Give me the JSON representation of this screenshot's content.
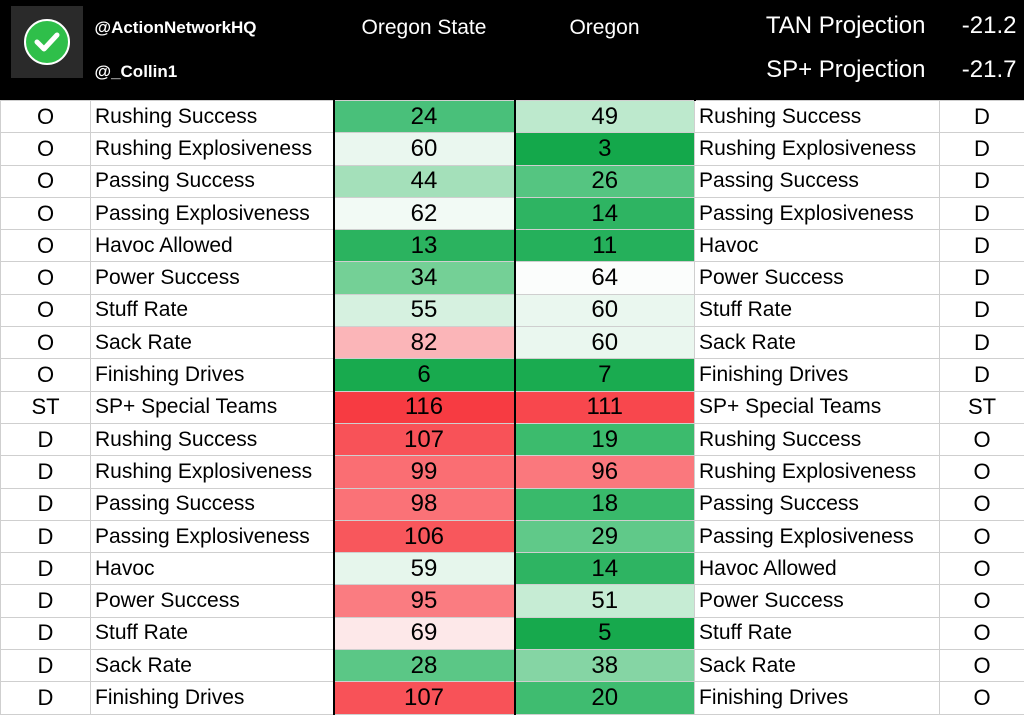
{
  "header": {
    "handle_primary": "@ActionNetworkHQ",
    "handle_secondary": "@_Collin1",
    "team_left": "Oregon State",
    "team_right": "Oregon",
    "projections": [
      {
        "label": "TAN Projection",
        "value": "-21.2"
      },
      {
        "label": "SP+ Projection",
        "value": "-21.7"
      }
    ]
  },
  "rows": [
    {
      "left_unit": "O",
      "left_label": "Rushing Success",
      "left_rank": "24",
      "left_color": "#49c07a",
      "right_rank": "49",
      "right_color": "#bde9cd",
      "right_label": "Rushing Success",
      "right_unit": "D"
    },
    {
      "left_unit": "O",
      "left_label": "Rushing Explosiveness",
      "left_rank": "60",
      "left_color": "#eaf7ef",
      "right_rank": "3",
      "right_color": "#14a84b",
      "right_label": "Rushing Explosiveness",
      "right_unit": "D"
    },
    {
      "left_unit": "O",
      "left_label": "Passing Success",
      "left_rank": "44",
      "left_color": "#a4e0ba",
      "right_rank": "26",
      "right_color": "#55c581",
      "right_label": "Passing Success",
      "right_unit": "D"
    },
    {
      "left_unit": "O",
      "left_label": "Passing Explosiveness",
      "left_rank": "62",
      "left_color": "#f2faf5",
      "right_rank": "14",
      "right_color": "#2eb462",
      "right_label": "Passing Explosiveness",
      "right_unit": "D"
    },
    {
      "left_unit": "O",
      "left_label": "Havoc Allowed",
      "left_rank": "13",
      "left_color": "#2bb35f",
      "right_rank": "11",
      "right_color": "#25b05b",
      "right_label": "Havoc",
      "right_unit": "D"
    },
    {
      "left_unit": "O",
      "left_label": "Power Success",
      "left_rank": "34",
      "left_color": "#74d096",
      "right_rank": "64",
      "right_color": "#fbfdfc",
      "right_label": "Power Success",
      "right_unit": "D"
    },
    {
      "left_unit": "O",
      "left_label": "Stuff Rate",
      "left_rank": "55",
      "left_color": "#d6f1e0",
      "right_rank": "60",
      "right_color": "#eaf7ef",
      "right_label": "Stuff Rate",
      "right_unit": "D"
    },
    {
      "left_unit": "O",
      "left_label": "Sack Rate",
      "left_rank": "82",
      "left_color": "#fbb5b8",
      "right_rank": "60",
      "right_color": "#eaf7ef",
      "right_label": "Sack Rate",
      "right_unit": "D"
    },
    {
      "left_unit": "O",
      "left_label": "Finishing Drives",
      "left_rank": "6",
      "left_color": "#18aa4e",
      "right_rank": "7",
      "right_color": "#1aab50",
      "right_label": "Finishing Drives",
      "right_unit": "D"
    },
    {
      "left_unit": "ST",
      "left_label": "SP+ Special Teams",
      "left_rank": "116",
      "left_color": "#f73b42",
      "right_rank": "111",
      "right_color": "#f8474d",
      "right_label": "SP+ Special Teams",
      "right_unit": "ST"
    },
    {
      "left_unit": "D",
      "left_label": "Rushing Success",
      "left_rank": "107",
      "left_color": "#f85258",
      "right_rank": "19",
      "right_color": "#3cbb6d",
      "right_label": "Rushing Success",
      "right_unit": "O"
    },
    {
      "left_unit": "D",
      "left_label": "Rushing Explosiveness",
      "left_rank": "99",
      "left_color": "#fa6e73",
      "right_rank": "96",
      "right_color": "#fa787d",
      "right_label": "Rushing Explosiveness",
      "right_unit": "O"
    },
    {
      "left_unit": "D",
      "left_label": "Passing Success",
      "left_rank": "98",
      "left_color": "#fa7277",
      "right_rank": "18",
      "right_color": "#39ba6b",
      "right_label": "Passing Success",
      "right_unit": "O"
    },
    {
      "left_unit": "D",
      "left_label": "Passing Explosiveness",
      "left_rank": "106",
      "left_color": "#f8575c",
      "right_rank": "29",
      "right_color": "#60c989",
      "right_label": "Passing Explosiveness",
      "right_unit": "O"
    },
    {
      "left_unit": "D",
      "left_label": "Havoc",
      "left_rank": "59",
      "left_color": "#e6f6ec",
      "right_rank": "14",
      "right_color": "#2eb462",
      "right_label": "Havoc Allowed",
      "right_unit": "O"
    },
    {
      "left_unit": "D",
      "left_label": "Power Success",
      "left_rank": "95",
      "left_color": "#fa7c81",
      "right_rank": "51",
      "right_color": "#c6ecd4",
      "right_label": "Power Success",
      "right_unit": "O"
    },
    {
      "left_unit": "D",
      "left_label": "Stuff Rate",
      "left_rank": "69",
      "left_color": "#fde8e9",
      "right_rank": "5",
      "right_color": "#17a94d",
      "right_label": "Stuff Rate",
      "right_unit": "O"
    },
    {
      "left_unit": "D",
      "left_label": "Sack Rate",
      "left_rank": "28",
      "left_color": "#5bc786",
      "right_rank": "38",
      "right_color": "#85d5a4",
      "right_label": "Sack Rate",
      "right_unit": "O"
    },
    {
      "left_unit": "D",
      "left_label": "Finishing Drives",
      "left_rank": "107",
      "left_color": "#f85258",
      "right_rank": "20",
      "right_color": "#3fbc70",
      "right_label": "Finishing Drives",
      "right_unit": "O"
    }
  ]
}
